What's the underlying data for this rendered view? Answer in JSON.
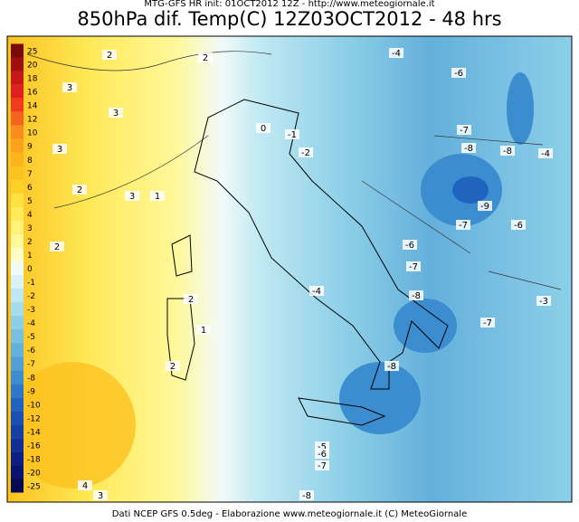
{
  "header": {
    "top": "MTG-GFS HR init: 01OCT2012 12Z - http://www.meteogiornale.it",
    "title": "850hPa dif. Temp(C) 12Z03OCT2012 - 48 hrs"
  },
  "footer": "Dati NCEP GFS 0.5deg - Elaborazione www.meteogiornale.it (C) MeteoGiornale",
  "legend": {
    "items": [
      {
        "label": 25,
        "color": "#7a0a0a"
      },
      {
        "label": 20,
        "color": "#9e0f0f"
      },
      {
        "label": 18,
        "color": "#c41818"
      },
      {
        "label": 16,
        "color": "#e02020"
      },
      {
        "label": 14,
        "color": "#f03c1e"
      },
      {
        "label": 12,
        "color": "#f5641e"
      },
      {
        "label": 10,
        "color": "#f88c1e"
      },
      {
        "label": 9,
        "color": "#faa21e"
      },
      {
        "label": 8,
        "color": "#fbb41e"
      },
      {
        "label": 7,
        "color": "#fcc21e"
      },
      {
        "label": 6,
        "color": "#fdd22a"
      },
      {
        "label": 5,
        "color": "#fee040"
      },
      {
        "label": 4,
        "color": "#ffea5a"
      },
      {
        "label": 3,
        "color": "#fff278"
      },
      {
        "label": 2,
        "color": "#fff89a"
      },
      {
        "label": 1,
        "color": "#fffcc8"
      },
      {
        "label": 0,
        "color": "#f0fafa"
      },
      {
        "label": -1,
        "color": "#d8f2f6"
      },
      {
        "label": -2,
        "color": "#bfe8f2"
      },
      {
        "label": -3,
        "color": "#a4dcee"
      },
      {
        "label": -4,
        "color": "#8ccfe8"
      },
      {
        "label": -5,
        "color": "#78c0e2"
      },
      {
        "label": -6,
        "color": "#64b0dc"
      },
      {
        "label": -7,
        "color": "#509fd6"
      },
      {
        "label": -8,
        "color": "#3c8cd0"
      },
      {
        "label": -9,
        "color": "#2c78ca"
      },
      {
        "label": -10,
        "color": "#2064c0"
      },
      {
        "label": -12,
        "color": "#1a50b4"
      },
      {
        "label": -14,
        "color": "#1440a6"
      },
      {
        "label": -16,
        "color": "#103096"
      },
      {
        "label": -18,
        "color": "#0c2084"
      },
      {
        "label": -20,
        "color": "#081470"
      },
      {
        "label": -25,
        "color": "#060a50"
      }
    ]
  },
  "contour_labels": [
    -4,
    -6,
    -7,
    -8,
    -8,
    -4,
    -9,
    -7,
    -6,
    -6,
    -7,
    -4,
    -8,
    -3,
    -7,
    -8,
    -5,
    -6,
    -7,
    -8,
    -1,
    -2,
    0,
    2,
    2,
    3,
    3,
    3,
    2,
    3,
    2,
    1,
    2,
    1,
    2,
    4,
    3
  ]
}
